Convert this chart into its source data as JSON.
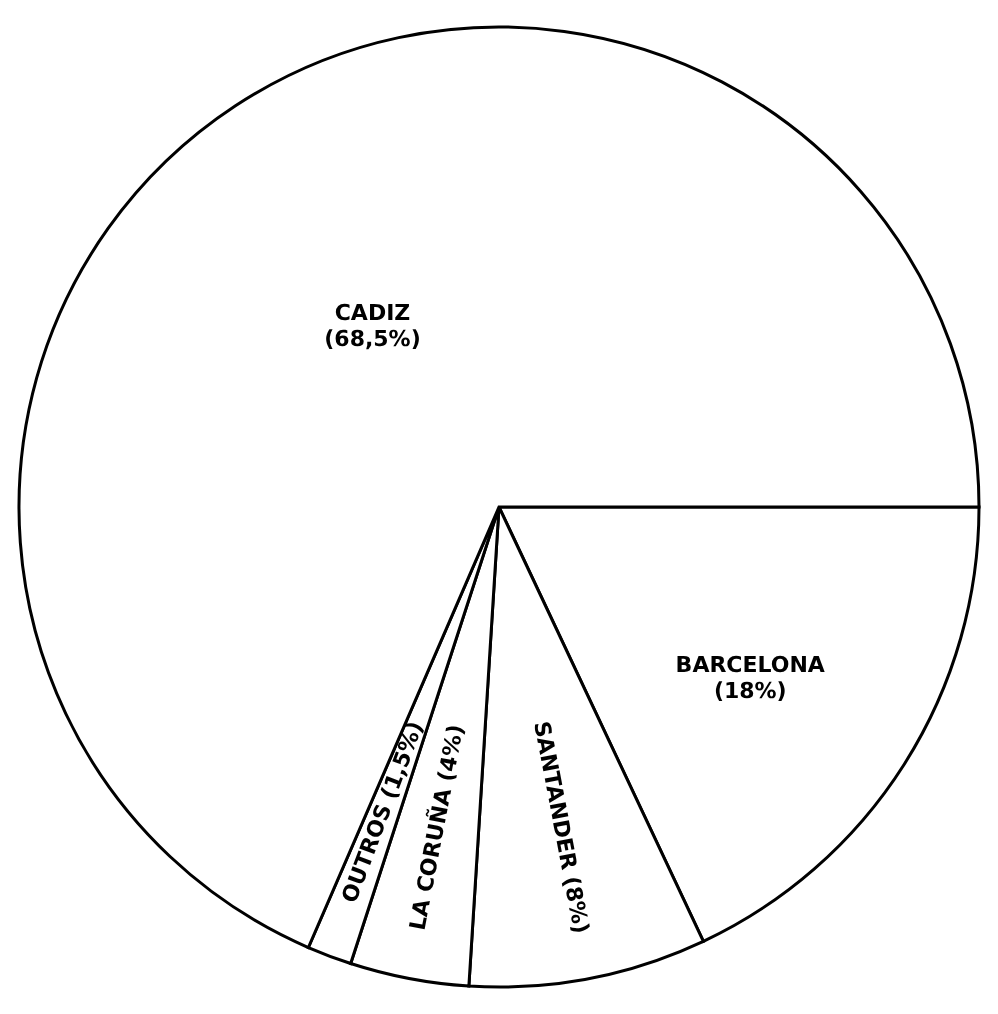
{
  "chart_data": {
    "type": "pie",
    "categories": [
      "BARCELONA",
      "SANTANDER",
      "LA CORUÑA",
      "OUTROS",
      "CADIZ"
    ],
    "values": [
      18,
      8,
      4,
      1.5,
      68.5
    ],
    "value_labels": [
      "(18%)",
      "(8%)",
      "(4%)",
      "(1,5%)",
      "(68,5%)"
    ],
    "colors": [
      "#ffffff",
      "#ffffff",
      "#ffffff",
      "#ffffff",
      "#ffffff"
    ]
  }
}
